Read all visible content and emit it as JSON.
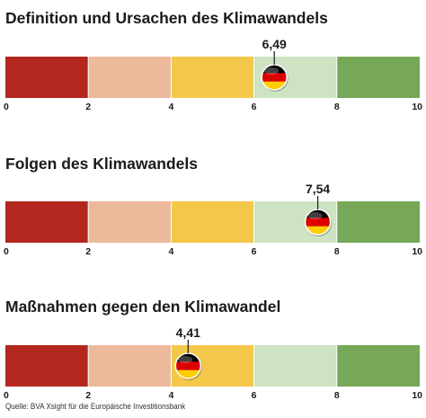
{
  "chart_data": [
    {
      "type": "bar",
      "title": "Definition und Ursachen des Klimawandels",
      "xlim": [
        0,
        10
      ],
      "ticks": [
        "0",
        "2",
        "4",
        "6",
        "8",
        "10"
      ],
      "segments": [
        {
          "from": 0,
          "to": 2,
          "color": "#b3271f"
        },
        {
          "from": 2,
          "to": 4,
          "color": "#ecb99a"
        },
        {
          "from": 4,
          "to": 6,
          "color": "#f4c74a"
        },
        {
          "from": 6,
          "to": 8,
          "color": "#cde3c2"
        },
        {
          "from": 8,
          "to": 10,
          "color": "#76a857"
        }
      ],
      "value": 6.49,
      "value_label": "6,49",
      "marker_icon": "germany-flag-icon"
    },
    {
      "type": "bar",
      "title": "Folgen des Klimawandels",
      "xlim": [
        0,
        10
      ],
      "ticks": [
        "0",
        "2",
        "4",
        "6",
        "8",
        "10"
      ],
      "segments": [
        {
          "from": 0,
          "to": 2,
          "color": "#b3271f"
        },
        {
          "from": 2,
          "to": 4,
          "color": "#ecb99a"
        },
        {
          "from": 4,
          "to": 6,
          "color": "#f4c74a"
        },
        {
          "from": 6,
          "to": 8,
          "color": "#cde3c2"
        },
        {
          "from": 8,
          "to": 10,
          "color": "#76a857"
        }
      ],
      "value": 7.54,
      "value_label": "7,54",
      "marker_icon": "germany-flag-icon"
    },
    {
      "type": "bar",
      "title": "Maßnahmen gegen den Klimawandel",
      "xlim": [
        0,
        10
      ],
      "ticks": [
        "0",
        "2",
        "4",
        "6",
        "8",
        "10"
      ],
      "segments": [
        {
          "from": 0,
          "to": 2,
          "color": "#b3271f"
        },
        {
          "from": 2,
          "to": 4,
          "color": "#ecb99a"
        },
        {
          "from": 4,
          "to": 6,
          "color": "#f4c74a"
        },
        {
          "from": 6,
          "to": 8,
          "color": "#cde3c2"
        },
        {
          "from": 8,
          "to": 10,
          "color": "#76a857"
        }
      ],
      "value": 4.41,
      "value_label": "4,41",
      "marker_icon": "germany-flag-icon"
    }
  ],
  "source": "Quelle: BVA Xsight für die Europäische Investitionsbank",
  "colors": {
    "text": "#1a1a1a",
    "flag_black": "#000000",
    "flag_red": "#dd0000",
    "flag_gold": "#ffce00"
  }
}
